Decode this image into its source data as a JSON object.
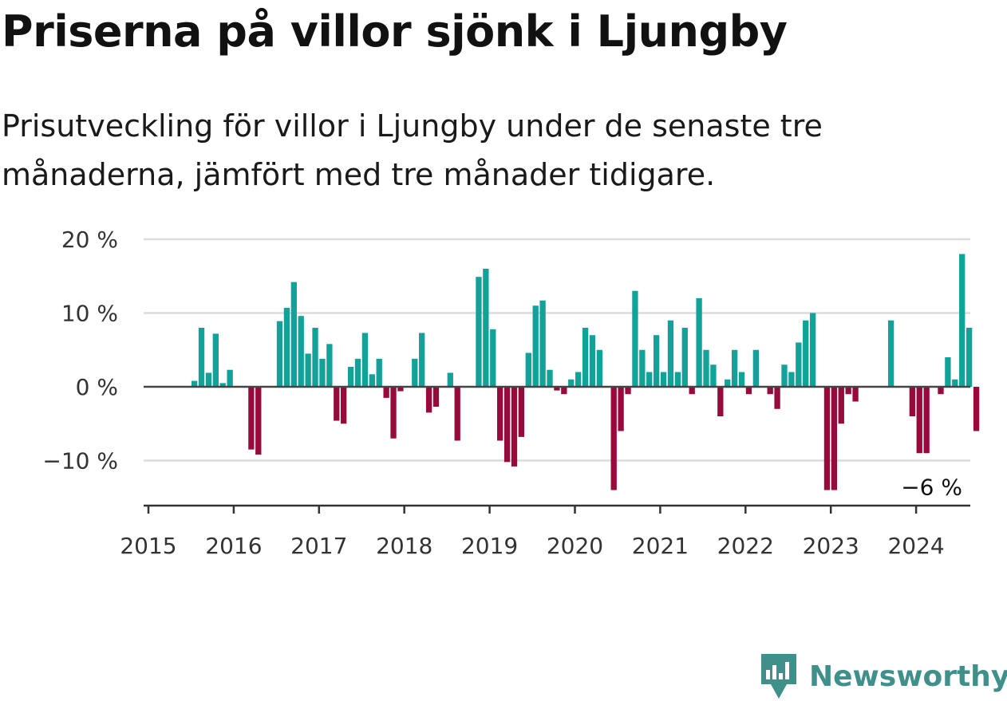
{
  "header": {
    "title": "Priserna på villor sjönk i Ljungby",
    "subtitle": "Prisutveckling för villor i Ljungby under de senaste tre månaderna, jämfört med tre månader tidigare."
  },
  "brand": {
    "name": "Newsworthy",
    "icon": "newsworthy-logo-icon",
    "color": "#3f8f8a"
  },
  "chart_data": {
    "type": "bar",
    "ylim": [
      -16,
      20
    ],
    "yticks": [
      {
        "value": 20,
        "label": "20 %"
      },
      {
        "value": 10,
        "label": "10 %"
      },
      {
        "value": 0,
        "label": "0 %"
      },
      {
        "value": -10,
        "label": "−10 %"
      }
    ],
    "xlim": [
      2015,
      2024.67
    ],
    "xticks": [
      "2015",
      "2016",
      "2017",
      "2018",
      "2019",
      "2020",
      "2021",
      "2022",
      "2023",
      "2024"
    ],
    "grid": true,
    "colors": {
      "positive": "#12a29a",
      "negative": "#980a3c"
    },
    "start": "2015-01",
    "frequency": "monthly",
    "values": [
      0,
      0,
      0,
      0,
      0,
      0,
      0.8,
      8.0,
      1.9,
      7.2,
      0.5,
      2.3,
      0,
      0,
      -8.5,
      -9.2,
      0,
      0,
      8.9,
      10.7,
      14.2,
      9.6,
      4.5,
      8.0,
      3.8,
      5.8,
      -4.6,
      -5.0,
      2.7,
      3.8,
      7.3,
      1.7,
      3.8,
      -1.5,
      -7.0,
      -0.6,
      0,
      3.8,
      7.3,
      -3.5,
      -2.7,
      0,
      1.9,
      -7.3,
      0,
      0,
      14.9,
      16.0,
      7.8,
      -7.3,
      -10.2,
      -10.8,
      -6.8,
      4.6,
      11.0,
      11.7,
      2.3,
      -0.5,
      -1.0,
      1.0,
      2.0,
      8.0,
      7.0,
      5.0,
      0,
      -14.0,
      -6.0,
      -1.0,
      13.0,
      5.0,
      2.0,
      7.0,
      2.0,
      9.0,
      2.0,
      8.0,
      -1.0,
      12.0,
      5.0,
      3.0,
      -4.0,
      1.0,
      5.0,
      2.0,
      -1.0,
      5.0,
      0,
      -1.0,
      -3.0,
      3.0,
      2.0,
      6.0,
      9.0,
      10.0,
      0,
      -14.0,
      -14.0,
      -5.0,
      -1.0,
      -2.0,
      0,
      0,
      0,
      0,
      9.0,
      0,
      0,
      -4.0,
      -9.0,
      -9.0,
      0,
      -1.0,
      4.0,
      1.0,
      18.0,
      8.0,
      -6.0
    ],
    "annotation": {
      "text": "−6 %",
      "value": -6
    }
  }
}
